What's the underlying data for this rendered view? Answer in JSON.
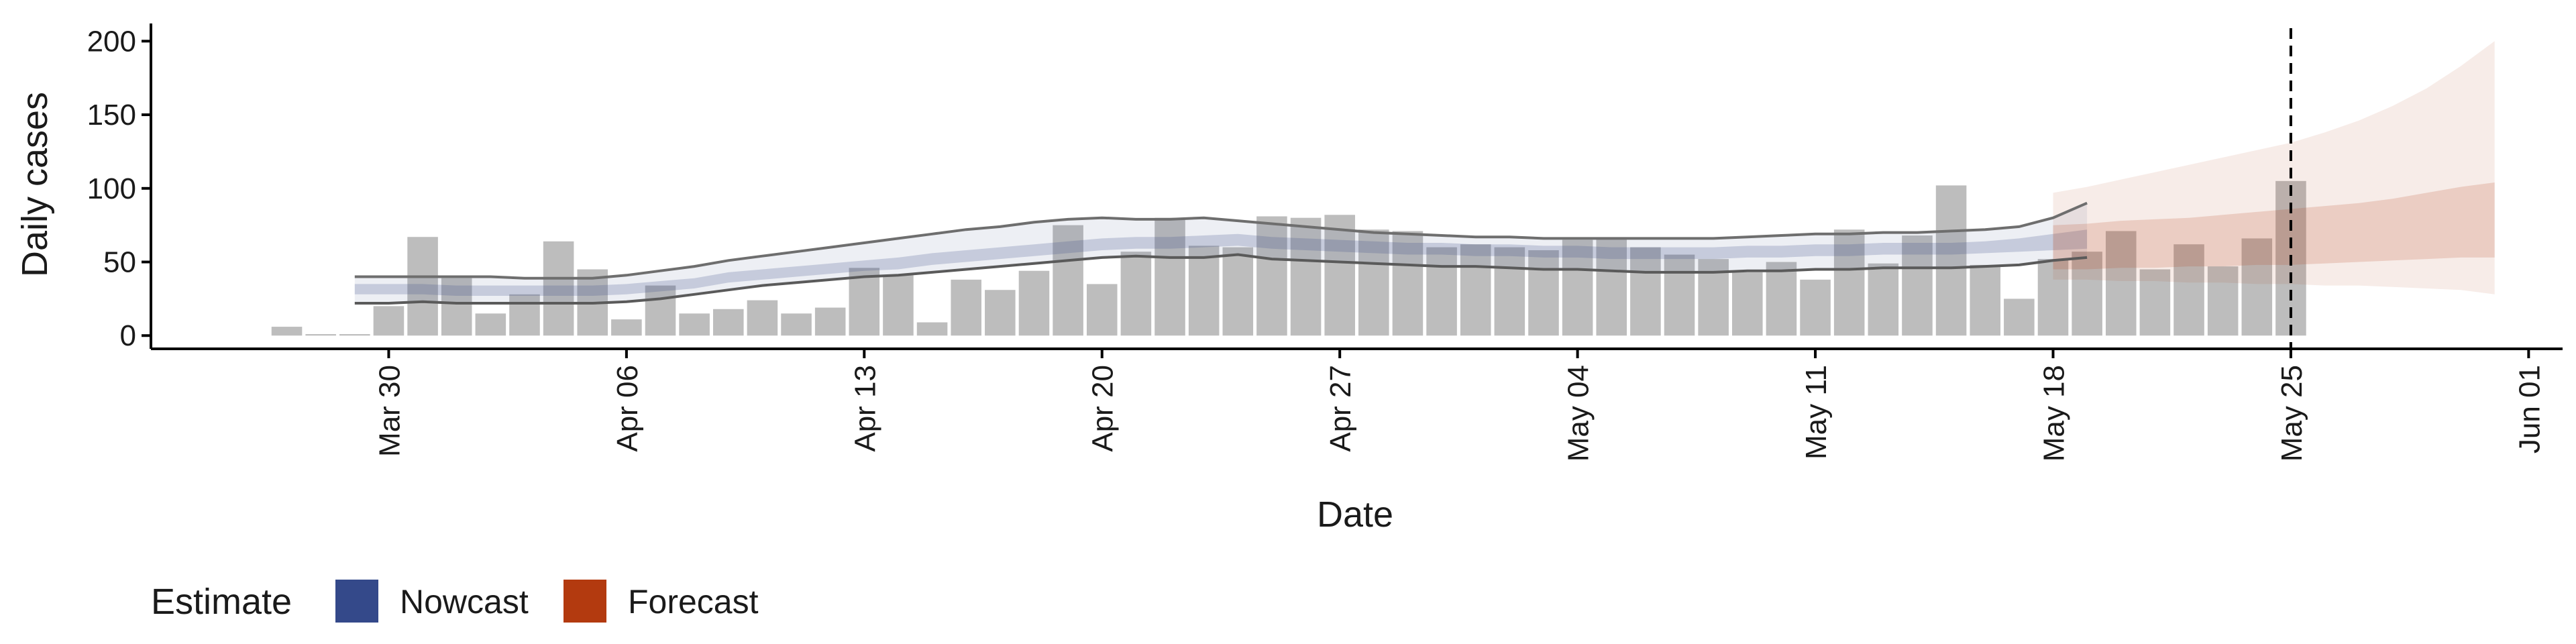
{
  "chart_data": {
    "type": "bar",
    "xlabel": "Date",
    "ylabel": "Daily cases",
    "ylim": [
      -9,
      212
    ],
    "yticks": [
      0,
      50,
      100,
      150,
      200
    ],
    "xticks": [
      "2020-03-30",
      "2020-04-06",
      "2020-04-13",
      "2020-04-20",
      "2020-04-27",
      "2020-05-04",
      "2020-05-11",
      "2020-05-18",
      "2020-05-25",
      "2020-06-01"
    ],
    "xtick_labels": [
      "Mar 30",
      "Apr 06",
      "Apr 13",
      "Apr 20",
      "Apr 27",
      "May 04",
      "May 11",
      "May 18",
      "May 25",
      "Jun 01"
    ],
    "xlim": [
      "2020-03-23",
      "2020-06-02"
    ],
    "vline_date": "2020-05-25",
    "vline_style": "dashed",
    "bars_start_date": "2020-03-27",
    "bars": [
      6,
      1,
      1,
      20,
      67,
      39,
      15,
      28,
      64,
      45,
      11,
      34,
      15,
      18,
      24,
      15,
      19,
      46,
      41,
      9,
      38,
      31,
      44,
      75,
      35,
      57,
      80,
      61,
      60,
      81,
      80,
      82,
      72,
      71,
      60,
      62,
      60,
      58,
      65,
      66,
      60,
      55,
      52,
      43,
      50,
      38,
      72,
      49,
      68,
      102,
      48,
      25,
      52,
      57,
      71,
      45,
      62,
      47,
      66,
      105
    ],
    "bar_color": "#bdbdbd",
    "nowcast": {
      "start_date": "2020-03-29",
      "median": [
        31,
        31,
        31,
        30,
        30,
        30,
        30,
        30,
        31,
        33,
        35,
        39,
        41,
        43,
        45,
        47,
        48,
        51,
        53,
        55,
        57,
        59,
        61,
        62,
        62,
        63,
        64,
        62,
        61,
        60,
        59,
        58,
        58,
        57,
        57,
        56,
        56,
        55,
        55,
        55,
        55,
        56,
        56,
        57,
        57,
        58,
        58,
        58,
        59,
        61,
        63,
        65
      ],
      "low50": [
        28,
        28,
        28,
        27,
        27,
        27,
        27,
        27,
        28,
        30,
        32,
        36,
        38,
        40,
        42,
        44,
        45,
        48,
        50,
        52,
        54,
        56,
        58,
        59,
        59,
        60,
        61,
        59,
        58,
        57,
        56,
        55,
        55,
        54,
        54,
        53,
        53,
        52,
        52,
        52,
        52,
        53,
        53,
        54,
        54,
        55,
        55,
        55,
        56,
        57,
        58,
        59
      ],
      "high50": [
        35,
        35,
        35,
        34,
        34,
        34,
        34,
        34,
        35,
        37,
        39,
        43,
        45,
        47,
        49,
        51,
        53,
        56,
        58,
        60,
        62,
        64,
        66,
        67,
        67,
        68,
        69,
        67,
        66,
        65,
        64,
        63,
        63,
        62,
        62,
        61,
        61,
        60,
        60,
        60,
        60,
        61,
        61,
        62,
        62,
        63,
        63,
        63,
        64,
        66,
        69,
        72
      ],
      "low90": [
        22,
        22,
        23,
        22,
        22,
        22,
        22,
        22,
        23,
        25,
        28,
        31,
        34,
        36,
        38,
        40,
        41,
        43,
        45,
        47,
        49,
        51,
        53,
        54,
        53,
        53,
        55,
        52,
        51,
        50,
        49,
        48,
        47,
        47,
        46,
        45,
        45,
        44,
        43,
        43,
        43,
        44,
        44,
        45,
        45,
        46,
        46,
        46,
        47,
        48,
        51,
        53
      ],
      "high90": [
        40,
        40,
        40,
        40,
        40,
        39,
        39,
        39,
        41,
        44,
        47,
        51,
        54,
        57,
        60,
        63,
        66,
        69,
        72,
        74,
        77,
        79,
        80,
        79,
        79,
        80,
        78,
        76,
        74,
        72,
        70,
        69,
        68,
        67,
        67,
        66,
        66,
        66,
        66,
        66,
        66,
        67,
        68,
        69,
        69,
        70,
        70,
        71,
        72,
        74,
        80,
        90
      ],
      "color": "#3a4c8a"
    },
    "forecast": {
      "start_date": "2020-05-18",
      "median": [
        60,
        61,
        61,
        62,
        62,
        63,
        63,
        64,
        64,
        65,
        65,
        66,
        66,
        67
      ],
      "low50": [
        45,
        45,
        46,
        46,
        47,
        47,
        48,
        48,
        49,
        50,
        51,
        52,
        53,
        53
      ],
      "high50": [
        75,
        76,
        78,
        79,
        80,
        82,
        84,
        86,
        88,
        90,
        93,
        97,
        101,
        104
      ],
      "low90": [
        38,
        38,
        37,
        37,
        36,
        36,
        35,
        35,
        34,
        34,
        33,
        32,
        31,
        28
      ],
      "high90": [
        97,
        101,
        106,
        111,
        116,
        121,
        126,
        131,
        138,
        146,
        156,
        168,
        183,
        200
      ],
      "color": "#b5401a"
    },
    "legend": {
      "title": "Estimate",
      "placement": "bottom-left",
      "items": [
        {
          "label": "Nowcast",
          "color": "#34498a"
        },
        {
          "label": "Forecast",
          "color": "#b33a0f"
        }
      ]
    }
  }
}
